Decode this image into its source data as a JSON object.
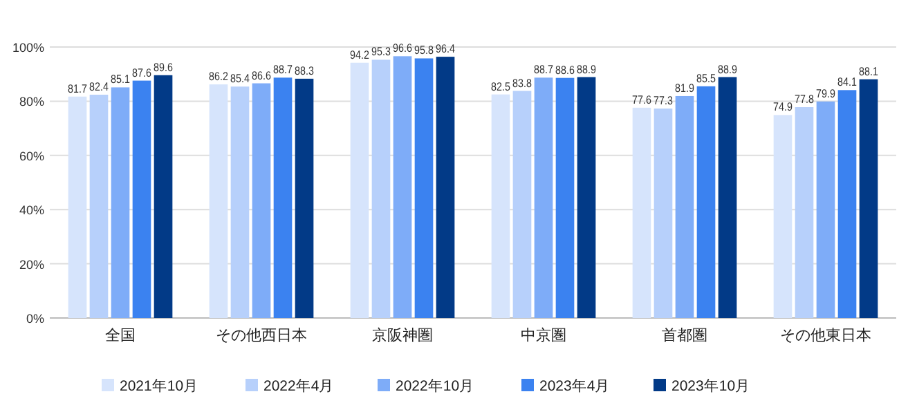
{
  "chart_data": {
    "type": "bar",
    "categories": [
      "全国",
      "その他西日本",
      "京阪神圏",
      "中京圏",
      "首都圏",
      "その他東日本"
    ],
    "series": [
      {
        "name": "2021年10月",
        "color": "#d6e4fc",
        "values": [
          81.7,
          86.2,
          94.2,
          82.5,
          77.6,
          74.9
        ]
      },
      {
        "name": "2022年4月",
        "color": "#b7d0fb",
        "values": [
          82.4,
          85.4,
          95.3,
          83.8,
          77.3,
          77.8
        ]
      },
      {
        "name": "2022年10月",
        "color": "#7eacf8",
        "values": [
          85.1,
          86.6,
          96.6,
          88.7,
          81.9,
          79.9
        ]
      },
      {
        "name": "2023年4月",
        "color": "#3b82f0",
        "values": [
          87.6,
          88.7,
          95.8,
          88.6,
          85.5,
          84.1
        ]
      },
      {
        "name": "2023年10月",
        "color": "#023a87",
        "values": [
          89.6,
          88.3,
          96.4,
          88.9,
          88.9,
          88.1
        ]
      }
    ],
    "ylim": [
      0,
      100
    ],
    "yticks": [
      {
        "value": 0,
        "label": "0%"
      },
      {
        "value": 20,
        "label": "20%"
      },
      {
        "value": 40,
        "label": "40%"
      },
      {
        "value": 60,
        "label": "60%"
      },
      {
        "value": 80,
        "label": "80%"
      },
      {
        "value": 100,
        "label": "100%"
      }
    ],
    "grid": "y",
    "legend": "bottom",
    "data_labels": true
  }
}
